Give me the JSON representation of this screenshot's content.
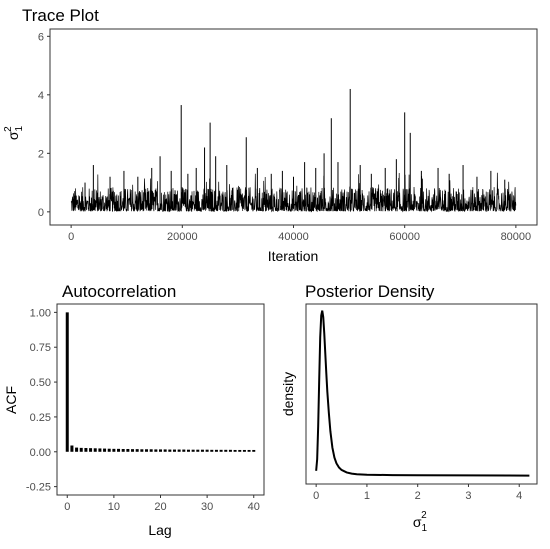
{
  "chart_data": [
    {
      "type": "line",
      "title": "Trace Plot",
      "xlabel": "Iteration",
      "ylabel": "σ",
      "ylabel_sup": "2",
      "ylabel_sub": "1",
      "xlim": [
        0,
        80000
      ],
      "ylim": [
        0,
        6
      ],
      "xticks": [
        0,
        20000,
        40000,
        60000,
        80000
      ],
      "yticks": [
        0,
        2,
        4,
        6
      ],
      "typical_range": [
        0.02,
        0.85
      ],
      "spikes": [
        {
          "x": 2500,
          "y": 1.0
        },
        {
          "x": 4000,
          "y": 1.6
        },
        {
          "x": 7000,
          "y": 1.2
        },
        {
          "x": 9500,
          "y": 1.4
        },
        {
          "x": 12000,
          "y": 1.2
        },
        {
          "x": 14500,
          "y": 1.5
        },
        {
          "x": 16000,
          "y": 1.9
        },
        {
          "x": 18000,
          "y": 1.4
        },
        {
          "x": 19800,
          "y": 3.65
        },
        {
          "x": 21000,
          "y": 1.3
        },
        {
          "x": 22500,
          "y": 1.5
        },
        {
          "x": 24000,
          "y": 2.2
        },
        {
          "x": 25000,
          "y": 3.05
        },
        {
          "x": 26000,
          "y": 1.9
        },
        {
          "x": 28000,
          "y": 1.6
        },
        {
          "x": 31500,
          "y": 2.55
        },
        {
          "x": 33500,
          "y": 1.5
        },
        {
          "x": 36000,
          "y": 1.3
        },
        {
          "x": 38000,
          "y": 1.4
        },
        {
          "x": 40000,
          "y": 1.2
        },
        {
          "x": 42000,
          "y": 1.7
        },
        {
          "x": 44000,
          "y": 1.5
        },
        {
          "x": 45500,
          "y": 2.0
        },
        {
          "x": 46800,
          "y": 3.2
        },
        {
          "x": 48000,
          "y": 1.7
        },
        {
          "x": 50200,
          "y": 4.2
        },
        {
          "x": 52000,
          "y": 1.6
        },
        {
          "x": 54000,
          "y": 1.3
        },
        {
          "x": 56500,
          "y": 1.5
        },
        {
          "x": 58500,
          "y": 1.8
        },
        {
          "x": 60000,
          "y": 3.4
        },
        {
          "x": 61000,
          "y": 2.7
        },
        {
          "x": 63000,
          "y": 1.4
        },
        {
          "x": 66000,
          "y": 1.5
        },
        {
          "x": 68000,
          "y": 1.3
        },
        {
          "x": 70500,
          "y": 1.6
        },
        {
          "x": 73000,
          "y": 1.2
        },
        {
          "x": 75500,
          "y": 1.4
        },
        {
          "x": 78000,
          "y": 1.1
        }
      ]
    },
    {
      "type": "bar",
      "title": "Autocorrelation",
      "xlabel": "Lag",
      "ylabel": "ACF",
      "xlim": [
        -1,
        41
      ],
      "ylim": [
        -0.25,
        1.0
      ],
      "xticks": [
        0,
        10,
        20,
        30,
        40
      ],
      "yticks": [
        -0.25,
        0.0,
        0.25,
        0.5,
        0.75,
        1.0
      ],
      "ytick_labels": [
        "-0.25",
        "0.00",
        "0.25",
        "0.50",
        "0.75",
        "1.00"
      ],
      "lags": [
        0,
        1,
        2,
        3,
        4,
        5,
        6,
        7,
        8,
        9,
        10,
        11,
        12,
        13,
        14,
        15,
        16,
        17,
        18,
        19,
        20,
        21,
        22,
        23,
        24,
        25,
        26,
        27,
        28,
        29,
        30,
        31,
        32,
        33,
        34,
        35,
        36,
        37,
        38,
        39,
        40
      ],
      "values": [
        1.0,
        0.045,
        0.03,
        0.028,
        0.027,
        0.026,
        0.025,
        0.024,
        0.023,
        0.022,
        0.021,
        0.021,
        0.02,
        0.02,
        0.019,
        0.019,
        0.018,
        0.018,
        0.018,
        0.017,
        0.017,
        0.017,
        0.016,
        0.016,
        0.016,
        0.016,
        0.015,
        0.015,
        0.015,
        0.015,
        0.015,
        0.014,
        0.014,
        0.014,
        0.014,
        0.014,
        0.013,
        0.013,
        0.013,
        0.013,
        0.013
      ]
    },
    {
      "type": "line",
      "title": "Posterior Density",
      "xlabel": "σ",
      "xlabel_sup": "2",
      "xlabel_sub": "1",
      "ylabel": "density",
      "xlim": [
        -0.05,
        4.3
      ],
      "xticks": [
        0,
        1,
        2,
        3,
        4
      ],
      "x": [
        0.0,
        0.02,
        0.04,
        0.06,
        0.08,
        0.1,
        0.12,
        0.14,
        0.16,
        0.18,
        0.2,
        0.22,
        0.25,
        0.28,
        0.32,
        0.36,
        0.4,
        0.45,
        0.5,
        0.6,
        0.7,
        0.8,
        1.0,
        1.5,
        2.0,
        3.0,
        4.2
      ],
      "y": [
        0.03,
        0.1,
        0.3,
        0.58,
        0.84,
        0.97,
        1.0,
        0.96,
        0.86,
        0.74,
        0.62,
        0.51,
        0.38,
        0.27,
        0.17,
        0.11,
        0.075,
        0.05,
        0.035,
        0.02,
        0.013,
        0.009,
        0.006,
        0.004,
        0.003,
        0.002,
        0.001
      ]
    }
  ]
}
